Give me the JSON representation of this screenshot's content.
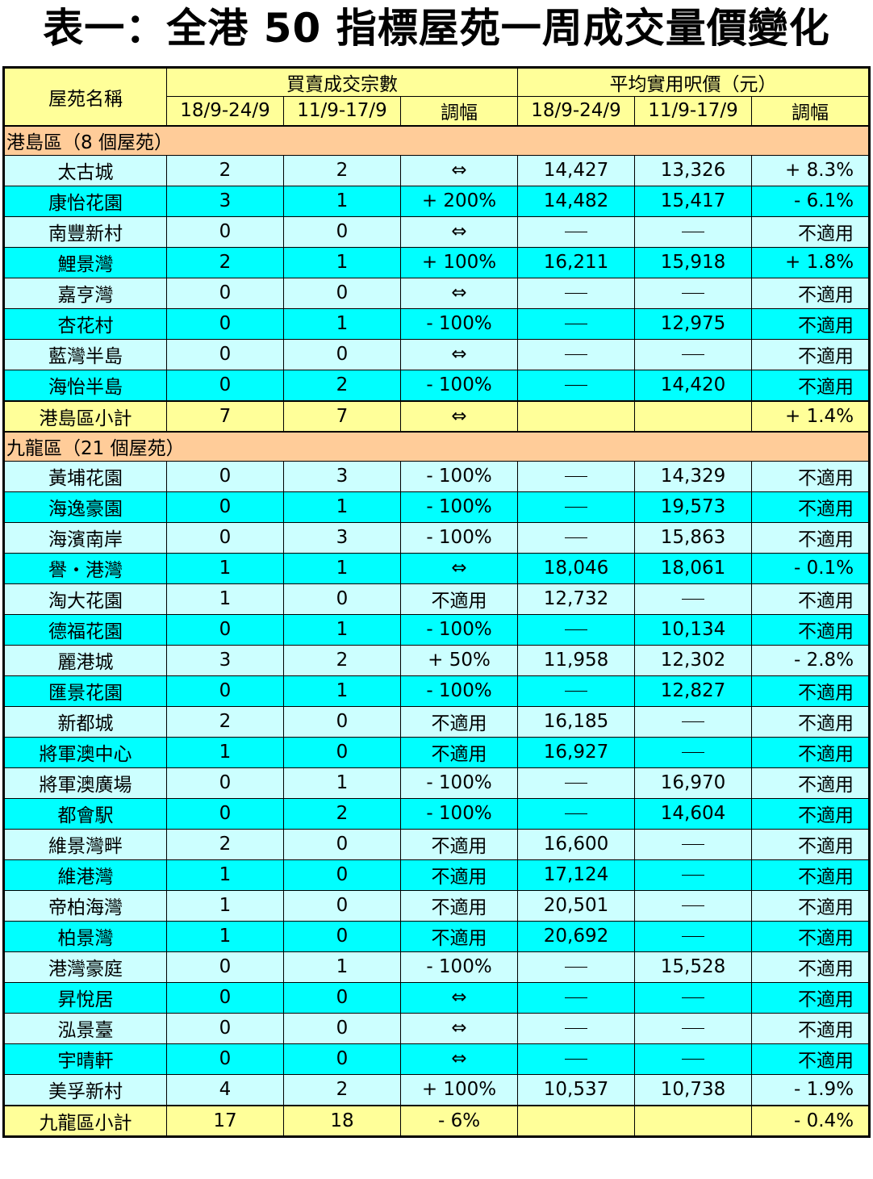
{
  "title": "表一：全港 50 指標屋苑一周成交量價變化",
  "header": {
    "name": "屋苑名稱",
    "volume_group": "買賣成交宗數",
    "price_group": "平均實用呎價（元）",
    "this_week": "18/9-24/9",
    "last_week": "11/9-17/9",
    "change": "調幅"
  },
  "sections": [
    {
      "label": "港島區（8 個屋苑）",
      "rows": [
        {
          "name": "太古城",
          "v1": "2",
          "v2": "2",
          "vc": "⇔",
          "p1": "14,427",
          "p2": "13,326",
          "pc": "+ 8.3%"
        },
        {
          "name": "康怡花園",
          "v1": "3",
          "v2": "1",
          "vc": "+ 200%",
          "p1": "14,482",
          "p2": "15,417",
          "pc": "- 6.1%"
        },
        {
          "name": "南豐新村",
          "v1": "0",
          "v2": "0",
          "vc": "⇔",
          "p1": "",
          "p2": "",
          "pc": "不適用"
        },
        {
          "name": "鯉景灣",
          "v1": "2",
          "v2": "1",
          "vc": "+ 100%",
          "p1": "16,211",
          "p2": "15,918",
          "pc": "+ 1.8%"
        },
        {
          "name": "嘉亨灣",
          "v1": "0",
          "v2": "0",
          "vc": "⇔",
          "p1": "",
          "p2": "",
          "pc": "不適用"
        },
        {
          "name": "杏花村",
          "v1": "0",
          "v2": "1",
          "vc": "- 100%",
          "p1": "",
          "p2": "12,975",
          "pc": "不適用"
        },
        {
          "name": "藍灣半島",
          "v1": "0",
          "v2": "0",
          "vc": "⇔",
          "p1": "",
          "p2": "",
          "pc": "不適用"
        },
        {
          "name": "海怡半島",
          "v1": "0",
          "v2": "2",
          "vc": "- 100%",
          "p1": "",
          "p2": "14,420",
          "pc": "不適用"
        }
      ],
      "subtotal": {
        "name": "港島區小計",
        "v1": "7",
        "v2": "7",
        "vc": "⇔",
        "p1": "",
        "p2": "",
        "pc": "+ 1.4%"
      }
    },
    {
      "label": "九龍區（21 個屋苑）",
      "rows": [
        {
          "name": "黃埔花園",
          "v1": "0",
          "v2": "3",
          "vc": "- 100%",
          "p1": "",
          "p2": "14,329",
          "pc": "不適用"
        },
        {
          "name": "海逸豪園",
          "v1": "0",
          "v2": "1",
          "vc": "- 100%",
          "p1": "",
          "p2": "19,573",
          "pc": "不適用"
        },
        {
          "name": "海濱南岸",
          "v1": "0",
          "v2": "3",
          "vc": "- 100%",
          "p1": "",
          "p2": "15,863",
          "pc": "不適用"
        },
        {
          "name": "譽・港灣",
          "v1": "1",
          "v2": "1",
          "vc": "⇔",
          "p1": "18,046",
          "p2": "18,061",
          "pc": "- 0.1%"
        },
        {
          "name": "淘大花園",
          "v1": "1",
          "v2": "0",
          "vc": "不適用",
          "p1": "12,732",
          "p2": "",
          "pc": "不適用"
        },
        {
          "name": "德福花園",
          "v1": "0",
          "v2": "1",
          "vc": "- 100%",
          "p1": "",
          "p2": "10,134",
          "pc": "不適用"
        },
        {
          "name": "麗港城",
          "v1": "3",
          "v2": "2",
          "vc": "+ 50%",
          "p1": "11,958",
          "p2": "12,302",
          "pc": "- 2.8%"
        },
        {
          "name": "匯景花園",
          "v1": "0",
          "v2": "1",
          "vc": "- 100%",
          "p1": "",
          "p2": "12,827",
          "pc": "不適用"
        },
        {
          "name": "新都城",
          "v1": "2",
          "v2": "0",
          "vc": "不適用",
          "p1": "16,185",
          "p2": "",
          "pc": "不適用"
        },
        {
          "name": "將軍澳中心",
          "v1": "1",
          "v2": "0",
          "vc": "不適用",
          "p1": "16,927",
          "p2": "",
          "pc": "不適用"
        },
        {
          "name": "將軍澳廣場",
          "v1": "0",
          "v2": "1",
          "vc": "- 100%",
          "p1": "",
          "p2": "16,970",
          "pc": "不適用"
        },
        {
          "name": "都會駅",
          "v1": "0",
          "v2": "2",
          "vc": "- 100%",
          "p1": "",
          "p2": "14,604",
          "pc": "不適用"
        },
        {
          "name": "維景灣畔",
          "v1": "2",
          "v2": "0",
          "vc": "不適用",
          "p1": "16,600",
          "p2": "",
          "pc": "不適用"
        },
        {
          "name": "維港灣",
          "v1": "1",
          "v2": "0",
          "vc": "不適用",
          "p1": "17,124",
          "p2": "",
          "pc": "不適用"
        },
        {
          "name": "帝柏海灣",
          "v1": "1",
          "v2": "0",
          "vc": "不適用",
          "p1": "20,501",
          "p2": "",
          "pc": "不適用"
        },
        {
          "name": "柏景灣",
          "v1": "1",
          "v2": "0",
          "vc": "不適用",
          "p1": "20,692",
          "p2": "",
          "pc": "不適用"
        },
        {
          "name": "港灣豪庭",
          "v1": "0",
          "v2": "1",
          "vc": "- 100%",
          "p1": "",
          "p2": "15,528",
          "pc": "不適用"
        },
        {
          "name": "昇悅居",
          "v1": "0",
          "v2": "0",
          "vc": "⇔",
          "p1": "",
          "p2": "",
          "pc": "不適用"
        },
        {
          "name": "泓景臺",
          "v1": "0",
          "v2": "0",
          "vc": "⇔",
          "p1": "",
          "p2": "",
          "pc": "不適用"
        },
        {
          "name": "宇晴軒",
          "v1": "0",
          "v2": "0",
          "vc": "⇔",
          "p1": "",
          "p2": "",
          "pc": "不適用"
        },
        {
          "name": "美孚新村",
          "v1": "4",
          "v2": "2",
          "vc": "+ 100%",
          "p1": "10,537",
          "p2": "10,738",
          "pc": "- 1.9%"
        }
      ],
      "subtotal": {
        "name": "九龍區小計",
        "v1": "17",
        "v2": "18",
        "vc": "- 6%",
        "p1": "",
        "p2": "",
        "pc": "- 0.4%"
      }
    }
  ],
  "colors": {
    "header_bg": "#ffff99",
    "group_bg": "#ffcc99",
    "row_light": "#ccffff",
    "row_cyan": "#00ffff"
  }
}
